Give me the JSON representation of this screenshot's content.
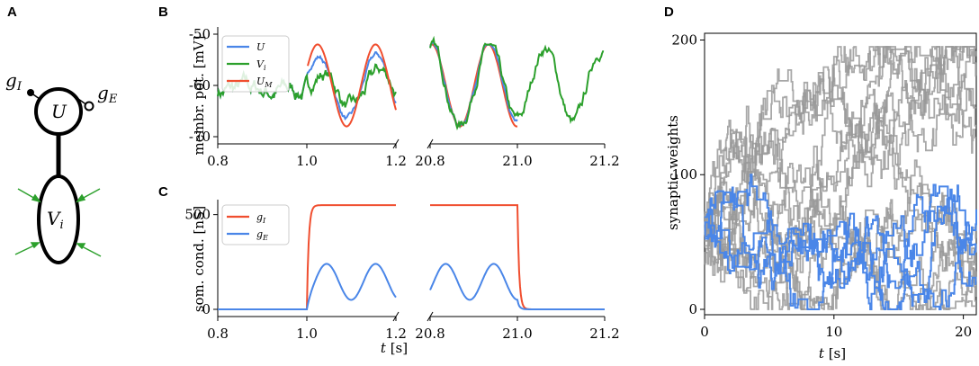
{
  "panels": {
    "a": "A",
    "b": "B",
    "c": "C",
    "d": "D"
  },
  "diagram": {
    "soma_label": "U",
    "dendrite_label": "V",
    "dendrite_sub": "i",
    "gi_label": "g",
    "gi_sub": "I",
    "ge_label": "g",
    "ge_sub": "E",
    "arrow_color": "#2ca02c"
  },
  "colors": {
    "U": "#4a86e8",
    "V": "#2ca02c",
    "UM": "#f04e2f",
    "gI": "#f04e2f",
    "gE": "#4a86e8",
    "gray": "#999999"
  },
  "chart_data": [
    {
      "id": "B",
      "type": "line",
      "ylabel": "membr. pot. [mV]",
      "ylim": [
        -70,
        -50
      ],
      "yticks": [
        "-50",
        "-60",
        "-70"
      ],
      "xticks_left": [
        "0.8",
        "1.0",
        "1.2"
      ],
      "xticks_right": [
        "20.8",
        "21.0",
        "21.2"
      ],
      "xlim_left": [
        0.8,
        1.2
      ],
      "xlim_right": [
        20.8,
        21.2
      ],
      "legend": [
        "U",
        "V_i",
        "U_M"
      ],
      "series": [
        {
          "name": "U"
        },
        {
          "name": "V_i"
        },
        {
          "name": "U_M"
        }
      ]
    },
    {
      "id": "C",
      "type": "line",
      "ylabel": "som. cond. [nS]",
      "xlabel": "t [s]",
      "ylim": [
        0,
        560
      ],
      "yticks": [
        "0",
        "500"
      ],
      "xticks_left": [
        "0.8",
        "1.0",
        "1.2"
      ],
      "xticks_right": [
        "20.8",
        "21.0",
        "21.2"
      ],
      "legend": [
        "g_I",
        "g_E"
      ],
      "series": [
        {
          "name": "g_I",
          "max": 550
        },
        {
          "name": "g_E",
          "min": 50,
          "max": 240
        }
      ]
    },
    {
      "id": "D",
      "type": "line",
      "ylabel": "synaptic weights",
      "xlabel": "t [s]",
      "xlim": [
        0,
        21
      ],
      "ylim": [
        0,
        205
      ],
      "xticks": [
        "0",
        "10",
        "20"
      ],
      "yticks": [
        "0",
        "100",
        "200"
      ]
    }
  ],
  "text": {
    "B_ylabel": "membr. pot. [mV]",
    "C_ylabel": "som. cond. [nS]",
    "D_ylabel": "synaptic weights",
    "t_label_t": "t",
    "t_label_unit": " [s]",
    "leg_U": "U",
    "leg_V": "V",
    "leg_V_sub": "i",
    "leg_UM": "U",
    "leg_UM_sub": "M",
    "leg_gI": "g",
    "leg_gI_sub": "I",
    "leg_gE": "g",
    "leg_gE_sub": "E"
  }
}
